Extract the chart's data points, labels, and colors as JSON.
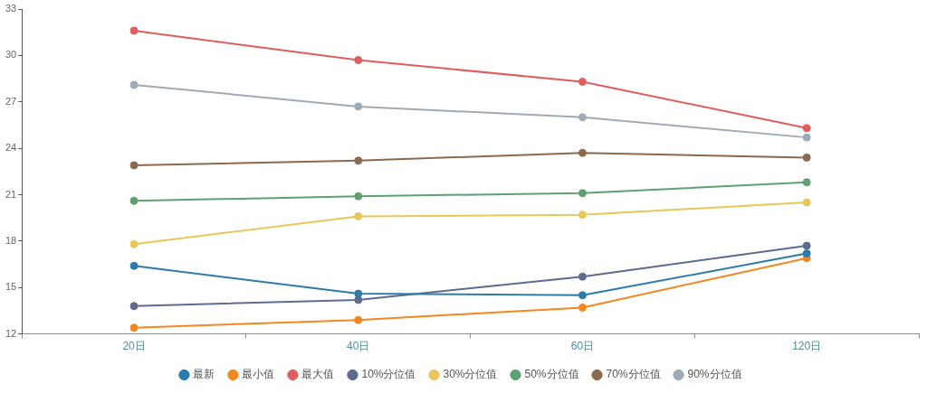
{
  "chart_data": {
    "type": "line",
    "categories": [
      "20日",
      "40日",
      "60日",
      "120日"
    ],
    "series": [
      {
        "name": "最新",
        "color": "#2b7bab",
        "values": [
          16.4,
          14.6,
          14.5,
          17.2
        ]
      },
      {
        "name": "最小值",
        "color": "#f5871f",
        "values": [
          12.4,
          12.9,
          13.7,
          16.9
        ]
      },
      {
        "name": "最大值",
        "color": "#e05d5d",
        "values": [
          31.6,
          29.7,
          28.3,
          25.3
        ]
      },
      {
        "name": "10%分位值",
        "color": "#5e6b8f",
        "values": [
          13.8,
          14.2,
          15.7,
          17.7
        ]
      },
      {
        "name": "30%分位值",
        "color": "#e8c75a",
        "values": [
          17.8,
          19.6,
          19.7,
          20.5
        ]
      },
      {
        "name": "50%分位值",
        "color": "#5fa073",
        "values": [
          20.6,
          20.9,
          21.1,
          21.8
        ]
      },
      {
        "name": "70%分位值",
        "color": "#8c6a50",
        "values": [
          22.9,
          23.2,
          23.7,
          23.4
        ]
      },
      {
        "name": "90%分位值",
        "color": "#9eaab6",
        "values": [
          28.1,
          26.7,
          26.0,
          24.7
        ]
      }
    ],
    "ylim": [
      12,
      33
    ],
    "yticks": [
      12,
      15,
      18,
      21,
      24,
      27,
      30,
      33
    ],
    "grid": false,
    "legend": "bottom",
    "marker": "circle",
    "line_style": "solid"
  }
}
